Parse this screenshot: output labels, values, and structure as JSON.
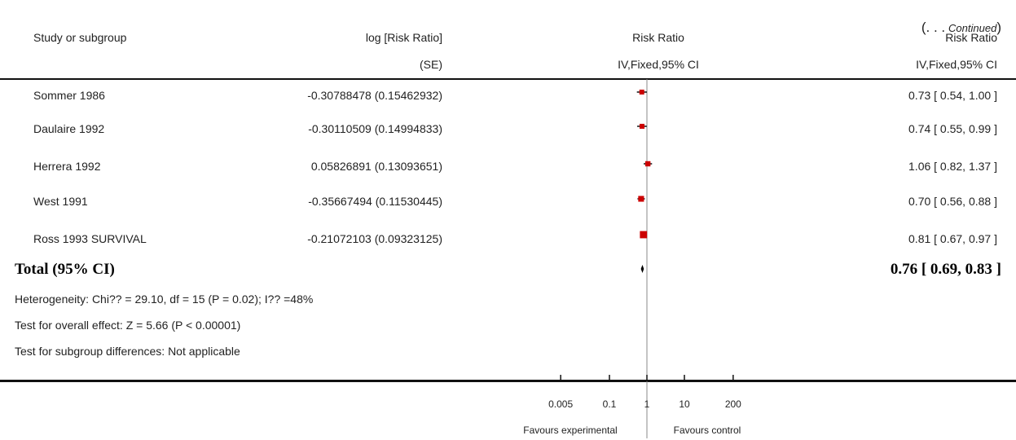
{
  "continued": {
    "open": "(. . .",
    "word": "Continued",
    "close": ")"
  },
  "headers": {
    "study": "Study or subgroup",
    "log_rr_line1": "log [Risk Ratio]",
    "log_rr_line2": "(SE)",
    "rr_plot_line1": "Risk Ratio",
    "rr_plot_line2": "IV,Fixed,95% CI",
    "rr_text_line1": "Risk Ratio",
    "rr_text_line2": "IV,Fixed,95% CI"
  },
  "studies": [
    {
      "name": "Sommer 1986",
      "log_se": "-0.30788478 (0.15462932)",
      "ci_text": "0.73 [ 0.54, 1.00 ]"
    },
    {
      "name": "Daulaire 1992",
      "log_se": "-0.30110509 (0.14994833)",
      "ci_text": "0.74 [ 0.55, 0.99 ]"
    },
    {
      "name": "Herrera 1992",
      "log_se": "0.05826891 (0.13093651)",
      "ci_text": "1.06 [ 0.82, 1.37 ]"
    },
    {
      "name": "West 1991",
      "log_se": "-0.35667494 (0.11530445)",
      "ci_text": "0.70 [ 0.56, 0.88 ]"
    },
    {
      "name": "Ross 1993 SURVIVAL",
      "log_se": "-0.21072103 (0.09323125)",
      "ci_text": "0.81 [ 0.67, 0.97 ]"
    }
  ],
  "total": {
    "label": "Total (95% CI)",
    "ci_text": "0.76 [ 0.69, 0.83 ]"
  },
  "notes": {
    "heterogeneity": "Heterogeneity: Chi?? = 29.10, df = 15 (P = 0.02); I?? =48%",
    "overall": "Test for overall effect: Z = 5.66 (P < 0.00001)",
    "subgroup": "Test for subgroup differences: Not applicable"
  },
  "axis": {
    "favours_left": "Favours experimental",
    "favours_right": "Favours control"
  },
  "colors": {
    "marker": "#cc0000",
    "line": "#111111"
  },
  "chart_data": {
    "type": "scatter",
    "scale": "log",
    "xlim": [
      0.005,
      200
    ],
    "ticks": [
      0.005,
      0.1,
      1,
      10,
      200
    ],
    "tick_labels": [
      "0.005",
      "0.1",
      "1",
      "10",
      "200"
    ],
    "null_value": 1,
    "series": [
      {
        "study": "Sommer 1986",
        "rr": 0.73,
        "ci": [
          0.54,
          1.0
        ],
        "weight": 0.9
      },
      {
        "study": "Daulaire 1992",
        "rr": 0.74,
        "ci": [
          0.55,
          0.99
        ],
        "weight": 0.95
      },
      {
        "study": "Herrera 1992",
        "rr": 1.06,
        "ci": [
          0.82,
          1.37
        ],
        "weight": 1.1
      },
      {
        "study": "West 1991",
        "rr": 0.7,
        "ci": [
          0.56,
          0.88
        ],
        "weight": 1.4
      },
      {
        "study": "Ross 1993 SURVIVAL",
        "rr": 0.81,
        "ci": [
          0.67,
          0.97
        ],
        "weight": 2.2
      }
    ],
    "total": {
      "rr": 0.76,
      "ci": [
        0.69,
        0.83
      ]
    }
  }
}
